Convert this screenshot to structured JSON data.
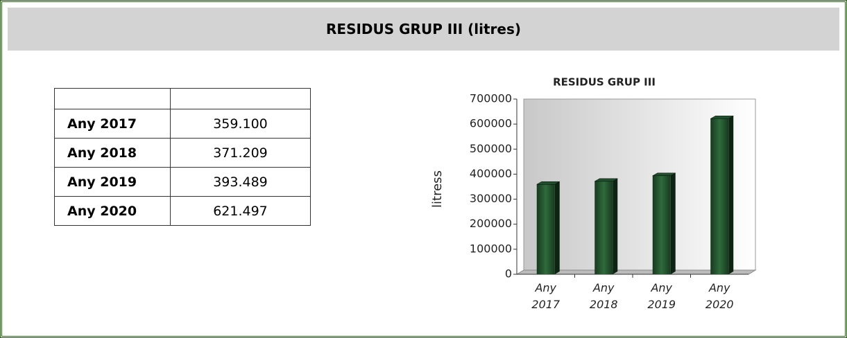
{
  "header": {
    "title": "RESIDUS GRUP III (litres)"
  },
  "table": {
    "rows": [
      [
        "Any 2017",
        "359.100"
      ],
      [
        "Any 2018",
        "371.209"
      ],
      [
        "Any 2019",
        "393.489"
      ],
      [
        "Any 2020",
        "621.497"
      ]
    ]
  },
  "chart_data": {
    "type": "bar",
    "title": "RESIDUS GRUP III",
    "y_label": "litress",
    "categories": [
      "Any 2017",
      "Any 2018",
      "Any 2019",
      "Any 2020"
    ],
    "values": [
      359100,
      371209,
      393489,
      621497
    ],
    "color": "#1f4f2c",
    "ylim": [
      0,
      700000
    ],
    "yticks": [
      0,
      100000,
      200000,
      300000,
      400000,
      500000,
      600000,
      700000
    ]
  }
}
